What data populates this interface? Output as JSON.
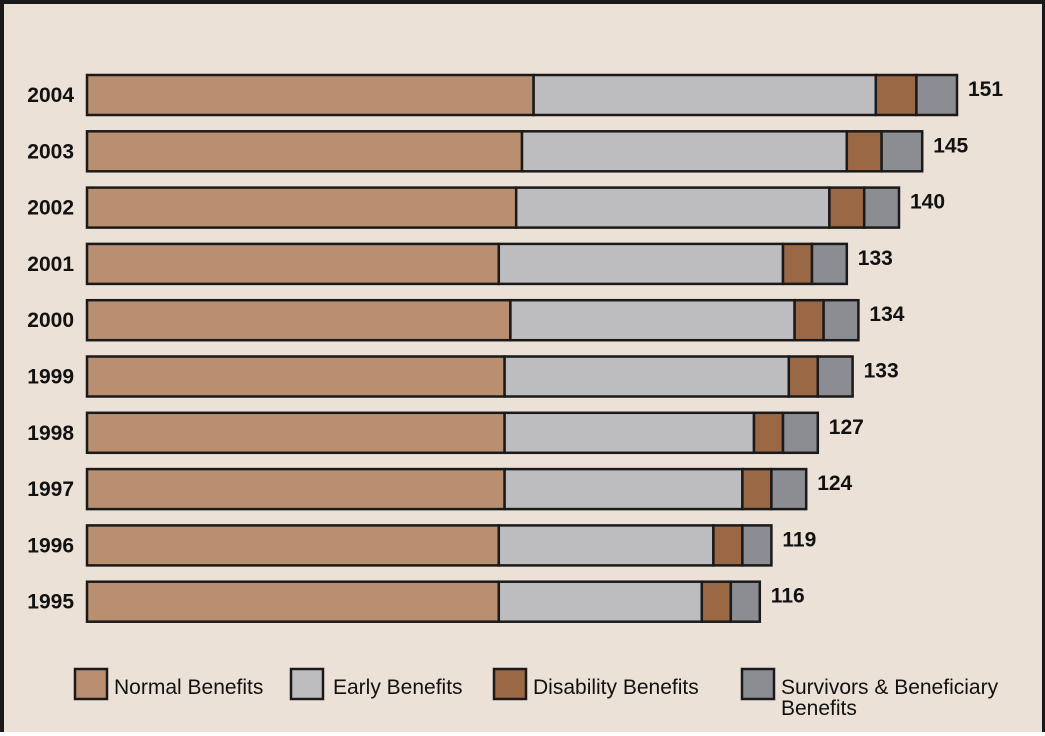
{
  "chart_data": {
    "type": "bar",
    "orientation": "horizontal",
    "stacked": true,
    "categories": [
      "2004",
      "2003",
      "2002",
      "2001",
      "2000",
      "1999",
      "1998",
      "1997",
      "1996",
      "1995"
    ],
    "series": [
      {
        "name": "Normal Benefits",
        "color": "#b98f70",
        "values": [
          77,
          75,
          74,
          71,
          73,
          72,
          72,
          72,
          71,
          71
        ]
      },
      {
        "name": "Early Benefits",
        "color": "#bdbdc0",
        "values": [
          59,
          56,
          54,
          49,
          49,
          49,
          43,
          41,
          37,
          35
        ]
      },
      {
        "name": "Disability Benefits",
        "color": "#9b6845",
        "values": [
          7,
          6,
          6,
          5,
          5,
          5,
          5,
          5,
          5,
          5
        ]
      },
      {
        "name": "Survivors & Beneficiary Benefits",
        "color": "#8c8d92",
        "values": [
          7,
          7,
          6,
          6,
          6,
          6,
          6,
          6,
          5,
          5
        ]
      }
    ],
    "totals": [
      "151",
      "145",
      "140",
      "133",
      "134",
      "133",
      "127",
      "124",
      "119",
      "116"
    ],
    "xlim": [
      0,
      160
    ],
    "grid": false,
    "legend_position": "bottom",
    "legend_lines": [
      [
        "Normal Benefits"
      ],
      [
        "Early Benefits"
      ],
      [
        "Disability Benefits"
      ],
      [
        "Survivors & Beneficiary",
        "Benefits"
      ]
    ]
  }
}
